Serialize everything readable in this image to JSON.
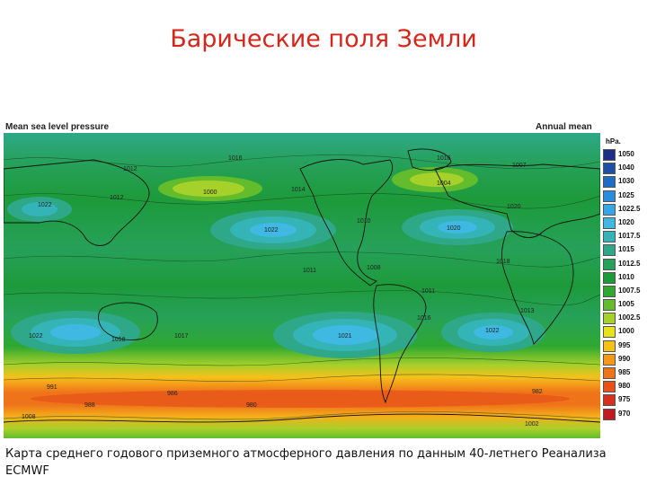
{
  "slide": {
    "title": "Барические поля Земли",
    "caption": "Карта среднего годового приземного атмосферного давления по данным 40-летнего Реанализа ECMWF"
  },
  "map": {
    "header_left": "Mean sea level pressure",
    "header_right": "Annual mean",
    "isobar_labels": [
      {
        "text": "1016"
      },
      {
        "text": "1012"
      },
      {
        "text": "1000"
      },
      {
        "text": "1014"
      },
      {
        "text": "1016"
      },
      {
        "text": "1007"
      },
      {
        "text": "1004"
      },
      {
        "text": "1012"
      },
      {
        "text": "1020"
      },
      {
        "text": "1022"
      },
      {
        "text": "1010"
      },
      {
        "text": "1022"
      },
      {
        "text": "1011"
      },
      {
        "text": "1008"
      },
      {
        "text": "1018"
      },
      {
        "text": "1020"
      },
      {
        "text": "1011"
      },
      {
        "text": "1013"
      },
      {
        "text": "1022"
      },
      {
        "text": "1018"
      },
      {
        "text": "1017"
      },
      {
        "text": "1021"
      },
      {
        "text": "1022"
      },
      {
        "text": "1016"
      },
      {
        "text": "991"
      },
      {
        "text": "986"
      },
      {
        "text": "980"
      },
      {
        "text": "982"
      },
      {
        "text": "988"
      },
      {
        "text": "1008"
      },
      {
        "text": "1002"
      }
    ]
  },
  "legend": {
    "unit": "hPa.",
    "items": [
      {
        "label": "1050",
        "color": "#1c2e86"
      },
      {
        "label": "1040",
        "color": "#1e4ea6"
      },
      {
        "label": "1030",
        "color": "#1f6cc4"
      },
      {
        "label": "1025",
        "color": "#2a8ddc"
      },
      {
        "label": "1022.5",
        "color": "#36a7e6"
      },
      {
        "label": "1020",
        "color": "#3fb8e2"
      },
      {
        "label": "1017.5",
        "color": "#34b4b6"
      },
      {
        "label": "1015",
        "color": "#2ea888"
      },
      {
        "label": "1012.5",
        "color": "#26a15a"
      },
      {
        "label": "1010",
        "color": "#1d9a3a"
      },
      {
        "label": "1007.5",
        "color": "#2fa830"
      },
      {
        "label": "1005",
        "color": "#62bc2c"
      },
      {
        "label": "1002.5",
        "color": "#a6d02a"
      },
      {
        "label": "1000",
        "color": "#e6e21e"
      },
      {
        "label": "995",
        "color": "#f6c01a"
      },
      {
        "label": "990",
        "color": "#f4981a"
      },
      {
        "label": "985",
        "color": "#ef7419"
      },
      {
        "label": "980",
        "color": "#e7511a"
      },
      {
        "label": "975",
        "color": "#d8301e"
      },
      {
        "label": "970",
        "color": "#c01a22"
      }
    ]
  }
}
